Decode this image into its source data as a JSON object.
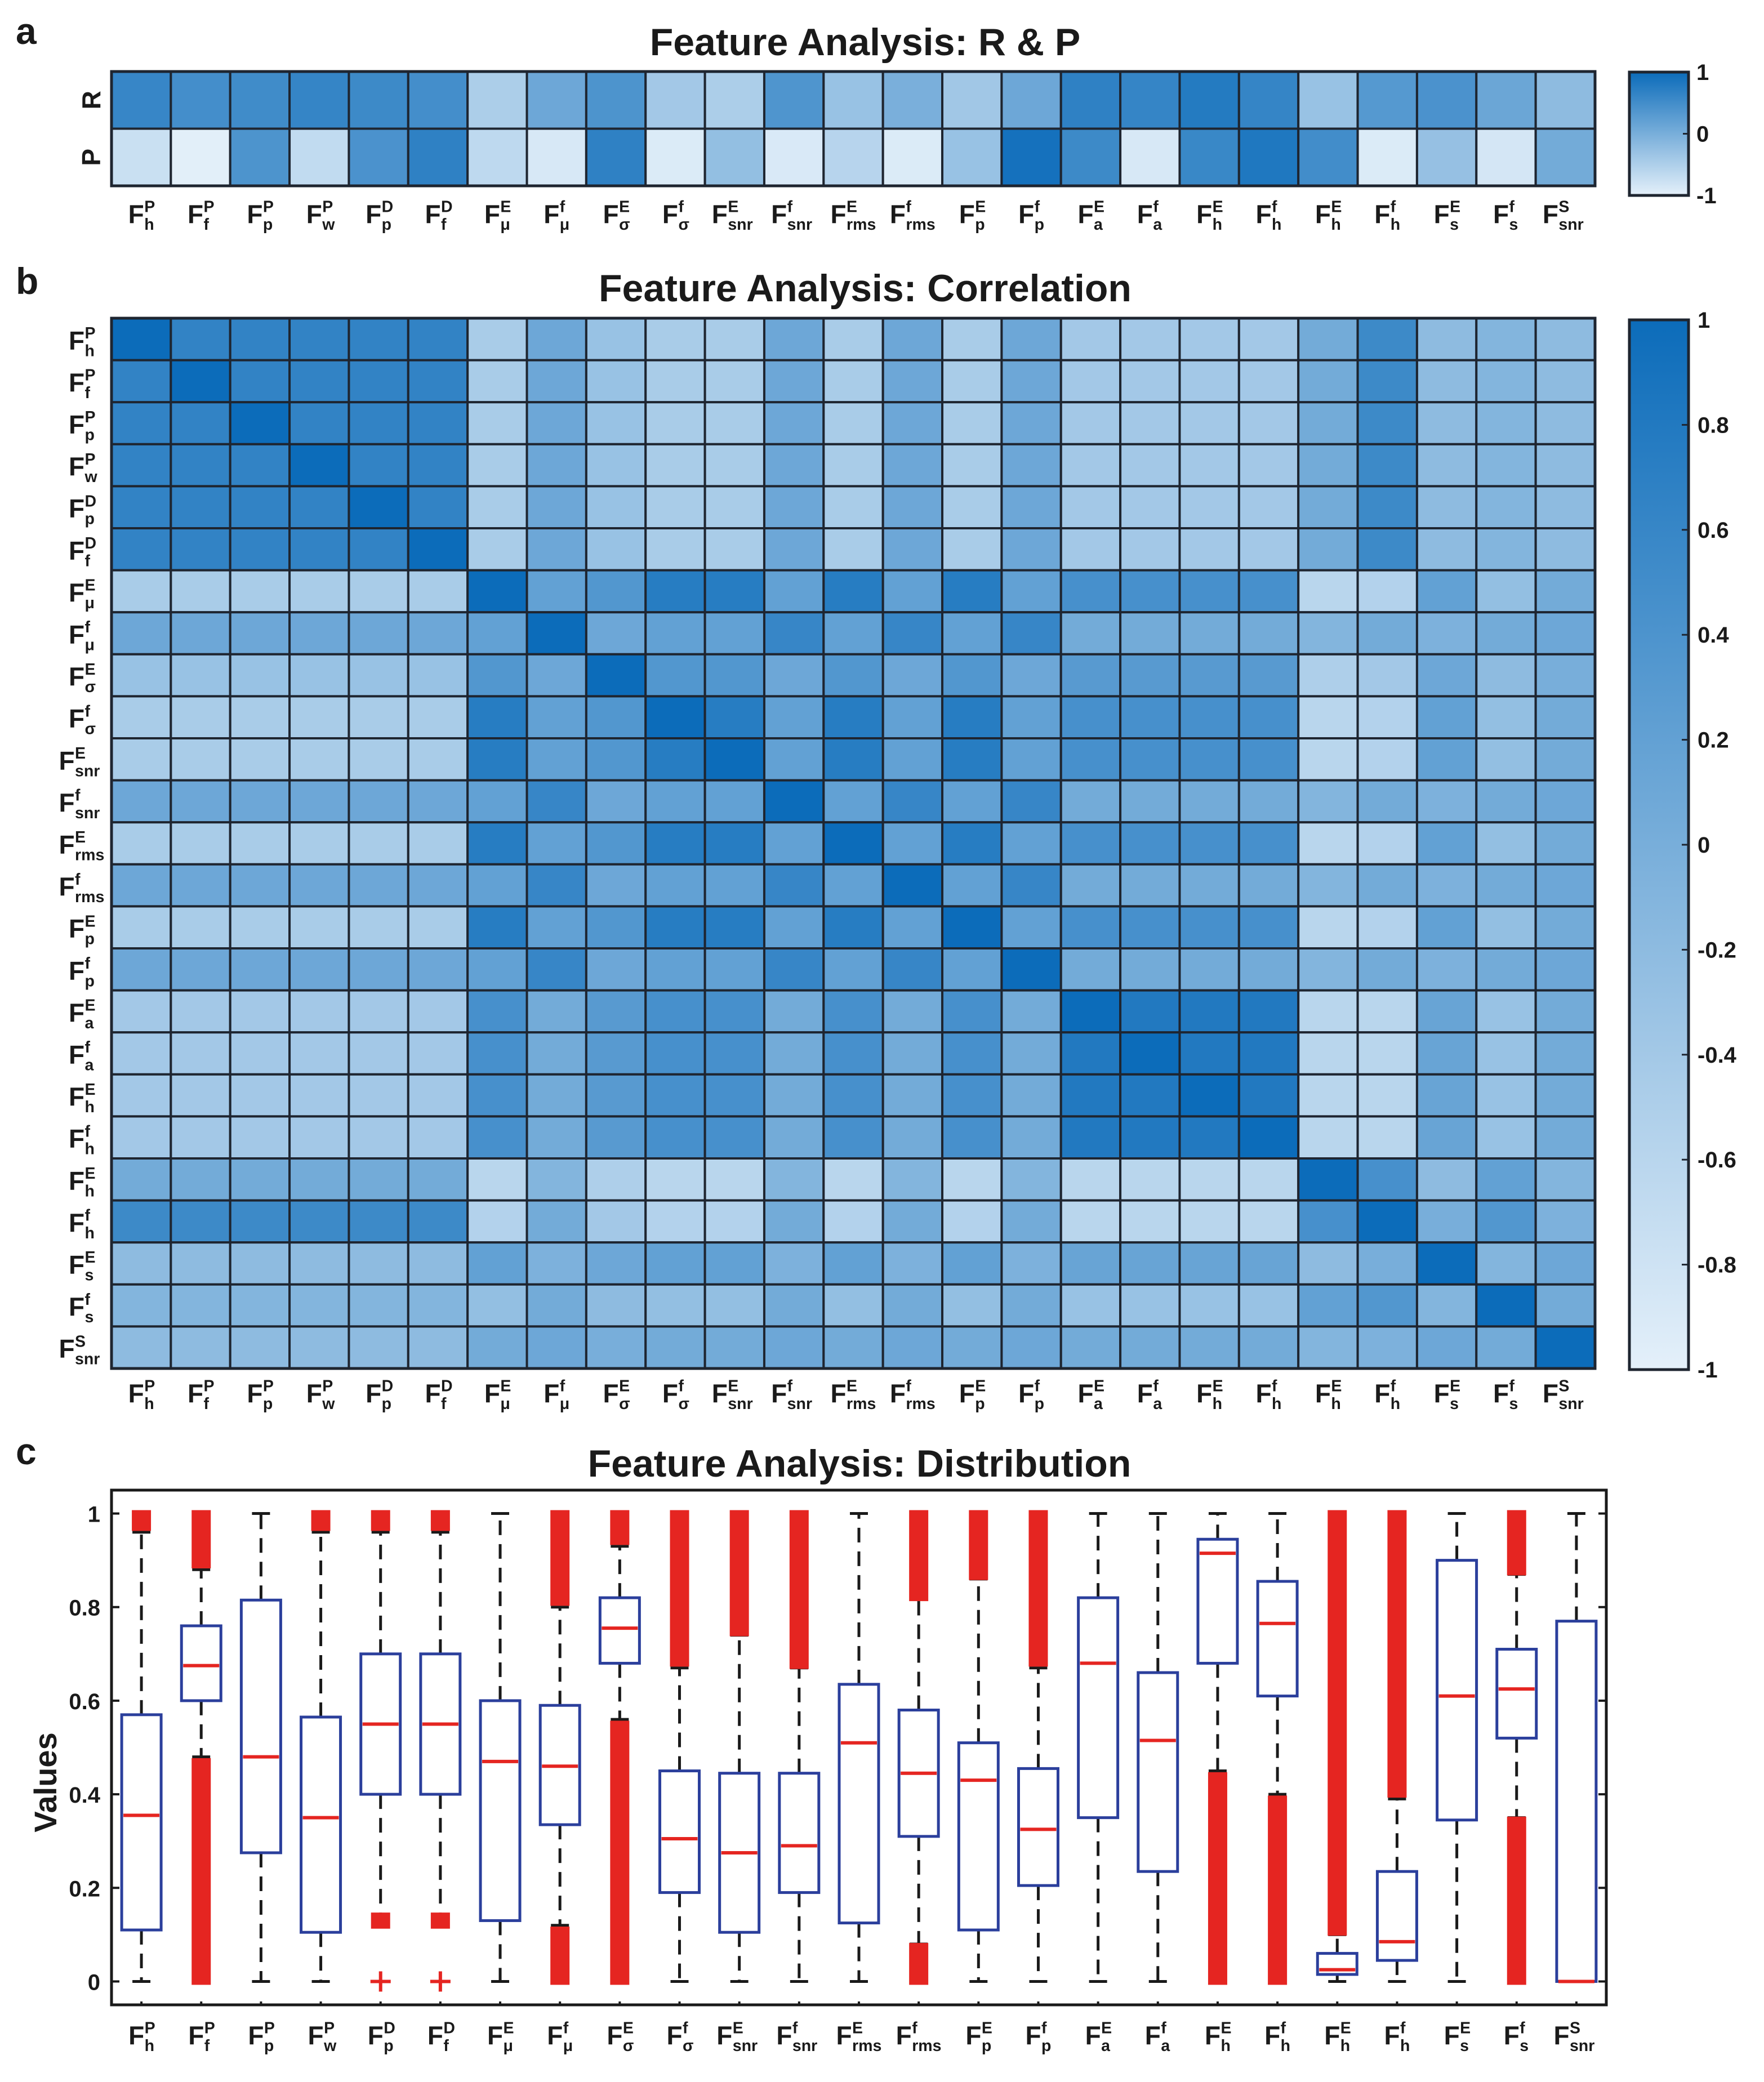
{
  "panels": {
    "a": {
      "label": "a",
      "title": "Feature Analysis: R & P"
    },
    "b": {
      "label": "b",
      "title": "Feature Analysis: Correlation"
    },
    "c": {
      "label": "c",
      "title": "Feature Analysis: Distribution"
    }
  },
  "colors": {
    "low": "#e4f0fa",
    "high": "#0c6cba",
    "median": "#e52521",
    "box": "#2b3f9c",
    "whisker": "#1a1a1a",
    "outlier": "#e52521",
    "grid": "#1e2530"
  },
  "features": [
    {
      "base": "F",
      "sup": "P",
      "sub": "h"
    },
    {
      "base": "F",
      "sup": "P",
      "sub": "f"
    },
    {
      "base": "F",
      "sup": "P",
      "sub": "p"
    },
    {
      "base": "F",
      "sup": "P",
      "sub": "w"
    },
    {
      "base": "F",
      "sup": "D",
      "sub": "p"
    },
    {
      "base": "F",
      "sup": "D",
      "sub": "f"
    },
    {
      "base": "F",
      "sup": "E",
      "sub": "μ"
    },
    {
      "base": "F",
      "sup": "f",
      "sub": "μ"
    },
    {
      "base": "F",
      "sup": "E",
      "sub": "σ"
    },
    {
      "base": "F",
      "sup": "f",
      "sub": "σ"
    },
    {
      "base": "F",
      "sup": "E",
      "sub": "snr"
    },
    {
      "base": "F",
      "sup": "f",
      "sub": "snr"
    },
    {
      "base": "F",
      "sup": "E",
      "sub": "rms"
    },
    {
      "base": "F",
      "sup": "f",
      "sub": "rms"
    },
    {
      "base": "F",
      "sup": "E",
      "sub": "p"
    },
    {
      "base": "F",
      "sup": "f",
      "sub": "p"
    },
    {
      "base": "F",
      "sup": "E",
      "sub": "a"
    },
    {
      "base": "F",
      "sup": "f",
      "sub": "a"
    },
    {
      "base": "F",
      "sup": "E",
      "sub": "h"
    },
    {
      "base": "F",
      "sup": "f",
      "sub": "h"
    },
    {
      "base": "F",
      "sup": "E",
      "sub": "h"
    },
    {
      "base": "F",
      "sup": "f",
      "sub": "h"
    },
    {
      "base": "F",
      "sup": "E",
      "sub": "s"
    },
    {
      "base": "F",
      "sup": "f",
      "sub": "s"
    },
    {
      "base": "F",
      "sup": "S",
      "sub": "snr"
    }
  ],
  "chart_data": [
    {
      "type": "heatmap",
      "title": "Feature Analysis: R & P",
      "rows": [
        "R",
        "P"
      ],
      "colorbar": {
        "min": -1,
        "max": 1,
        "ticks": [
          "1",
          "0",
          "-1"
        ]
      },
      "values": [
        [
          0.6,
          0.48,
          0.52,
          0.62,
          0.55,
          0.48,
          -0.48,
          0.1,
          0.4,
          -0.4,
          -0.48,
          0.38,
          -0.3,
          -0.02,
          -0.38,
          0.1,
          0.68,
          0.62,
          0.78,
          0.62,
          -0.3,
          0.32,
          0.42,
          0.12,
          -0.2
        ],
        [
          -0.75,
          -0.98,
          0.4,
          -0.68,
          0.42,
          0.68,
          -0.65,
          -0.88,
          0.68,
          -0.92,
          -0.25,
          -0.9,
          -0.58,
          -0.92,
          -0.3,
          0.92,
          0.55,
          -0.88,
          0.58,
          0.82,
          0.5,
          -0.92,
          -0.28,
          -0.85,
          0.05
        ]
      ]
    },
    {
      "type": "heatmap",
      "title": "Feature Analysis: Correlation",
      "colorbar": {
        "min": -1,
        "max": 1,
        "ticks": [
          "1",
          "0.8",
          "0.6",
          "0.4",
          "0.2",
          "0",
          "-0.2",
          "-0.4",
          "-0.6",
          "-0.8",
          "-1"
        ]
      },
      "blocks": {
        "rows": [
          1,
          1,
          1,
          1,
          1,
          1,
          2,
          3,
          4,
          2,
          2,
          3,
          2,
          3,
          2,
          3,
          5,
          5,
          5,
          5,
          6,
          7,
          8,
          9,
          10
        ],
        "matrix": [
          [
            0.65,
            -0.45,
            0.1,
            -0.3,
            -0.4,
            0.05,
            0.55,
            -0.2,
            -0.1,
            -0.2
          ],
          [
            -0.45,
            0.75,
            0.2,
            0.35,
            0.45,
            -0.6,
            -0.55,
            0.2,
            -0.25,
            0.05
          ],
          [
            0.1,
            0.2,
            0.6,
            0.1,
            0.05,
            -0.1,
            0.05,
            -0.05,
            0.05,
            0.1
          ],
          [
            -0.3,
            0.35,
            0.1,
            0.85,
            0.3,
            -0.5,
            -0.4,
            0.1,
            -0.2,
            0.0
          ],
          [
            -0.4,
            0.45,
            0.05,
            0.3,
            0.8,
            -0.6,
            -0.6,
            0.15,
            -0.3,
            0.05
          ],
          [
            0.05,
            -0.6,
            -0.1,
            -0.5,
            -0.6,
            0.72,
            0.45,
            -0.2,
            0.2,
            -0.1
          ],
          [
            0.55,
            -0.55,
            0.05,
            -0.4,
            -0.6,
            0.45,
            0.7,
            0.0,
            0.35,
            -0.05
          ],
          [
            -0.2,
            0.2,
            -0.05,
            0.1,
            0.15,
            -0.2,
            0.0,
            0.6,
            -0.1,
            0.1
          ],
          [
            -0.1,
            -0.25,
            0.05,
            -0.2,
            -0.3,
            0.2,
            0.35,
            -0.1,
            0.7,
            0.05
          ],
          [
            -0.2,
            0.05,
            0.1,
            0.0,
            0.05,
            -0.1,
            -0.05,
            0.1,
            0.05,
            0.6
          ]
        ]
      }
    },
    {
      "type": "box",
      "title": "Feature Analysis: Distribution",
      "ylabel": "Values",
      "ylim": [
        -0.05,
        1.05
      ],
      "yticks": [
        "0",
        "0.2",
        "0.4",
        "0.6",
        "0.8",
        "1"
      ],
      "boxes": [
        {
          "q1": 0.11,
          "med": 0.355,
          "q3": 0.57,
          "lw": 0.0,
          "uw": 0.96,
          "out": [
            [
              0.97,
              1.0
            ]
          ]
        },
        {
          "q1": 0.6,
          "med": 0.675,
          "q3": 0.76,
          "lw": 0.48,
          "uw": 0.88,
          "out": [
            [
              0.0,
              0.47
            ],
            [
              0.89,
              1.0
            ]
          ]
        },
        {
          "q1": 0.275,
          "med": 0.48,
          "q3": 0.815,
          "lw": 0.0,
          "uw": 1.0,
          "out": []
        },
        {
          "q1": 0.105,
          "med": 0.35,
          "q3": 0.565,
          "lw": 0.0,
          "uw": 0.96,
          "out": [
            [
              0.97,
              1.0
            ]
          ]
        },
        {
          "q1": 0.4,
          "med": 0.55,
          "q3": 0.7,
          "lw": 0.14,
          "uw": 0.96,
          "out": [
            [
              0.0,
              0.0
            ],
            [
              0.12,
              0.14
            ],
            [
              0.97,
              1.0
            ]
          ]
        },
        {
          "q1": 0.4,
          "med": 0.55,
          "q3": 0.7,
          "lw": 0.14,
          "uw": 0.96,
          "out": [
            [
              0.0,
              0.0
            ],
            [
              0.12,
              0.14
            ],
            [
              0.97,
              1.0
            ]
          ]
        },
        {
          "q1": 0.13,
          "med": 0.47,
          "q3": 0.6,
          "lw": 0.0,
          "uw": 1.0,
          "out": []
        },
        {
          "q1": 0.335,
          "med": 0.46,
          "q3": 0.59,
          "lw": 0.12,
          "uw": 0.8,
          "out": [
            [
              0.0,
              0.11
            ],
            [
              0.81,
              1.0
            ]
          ]
        },
        {
          "q1": 0.68,
          "med": 0.755,
          "q3": 0.82,
          "lw": 0.56,
          "uw": 0.93,
          "out": [
            [
              0.0,
              0.55
            ],
            [
              0.94,
              1.0
            ]
          ]
        },
        {
          "q1": 0.19,
          "med": 0.305,
          "q3": 0.45,
          "lw": 0.0,
          "uw": 0.67,
          "out": [
            [
              0.68,
              1.0
            ]
          ]
        },
        {
          "q1": 0.105,
          "med": 0.275,
          "q3": 0.445,
          "lw": 0.0,
          "uw": 0.74,
          "out": [
            [
              0.745,
              1.0
            ]
          ]
        },
        {
          "q1": 0.19,
          "med": 0.29,
          "q3": 0.445,
          "lw": 0.0,
          "uw": 0.67,
          "out": [
            [
              0.675,
              1.0
            ]
          ]
        },
        {
          "q1": 0.125,
          "med": 0.51,
          "q3": 0.635,
          "lw": 0.0,
          "uw": 1.0,
          "out": []
        },
        {
          "q1": 0.31,
          "med": 0.445,
          "q3": 0.58,
          "lw": 0.08,
          "uw": 0.82,
          "out": [
            [
              0.0,
              0.075
            ],
            [
              0.82,
              1.0
            ]
          ]
        },
        {
          "q1": 0.11,
          "med": 0.43,
          "q3": 0.51,
          "lw": 0.0,
          "uw": 0.86,
          "out": [
            [
              0.865,
              1.0
            ]
          ]
        },
        {
          "q1": 0.205,
          "med": 0.325,
          "q3": 0.455,
          "lw": 0.0,
          "uw": 0.67,
          "out": [
            [
              0.68,
              1.0
            ]
          ]
        },
        {
          "q1": 0.35,
          "med": 0.68,
          "q3": 0.82,
          "lw": 0.0,
          "uw": 1.0,
          "out": []
        },
        {
          "q1": 0.235,
          "med": 0.515,
          "q3": 0.66,
          "lw": 0.0,
          "uw": 1.0,
          "out": []
        },
        {
          "q1": 0.68,
          "med": 0.915,
          "q3": 0.945,
          "lw": 0.45,
          "uw": 1.0,
          "out": [
            [
              0.0,
              0.44
            ]
          ]
        },
        {
          "q1": 0.61,
          "med": 0.765,
          "q3": 0.855,
          "lw": 0.4,
          "uw": 1.0,
          "out": [
            [
              0.0,
              0.39
            ]
          ]
        },
        {
          "q1": 0.015,
          "med": 0.025,
          "q3": 0.06,
          "lw": 0.0,
          "uw": 0.1,
          "out": [
            [
              0.105,
              1.0
            ]
          ]
        },
        {
          "q1": 0.045,
          "med": 0.085,
          "q3": 0.235,
          "lw": 0.0,
          "uw": 0.39,
          "out": [
            [
              0.4,
              1.0
            ]
          ]
        },
        {
          "q1": 0.345,
          "med": 0.61,
          "q3": 0.9,
          "lw": 0.0,
          "uw": 1.0,
          "out": []
        },
        {
          "q1": 0.52,
          "med": 0.625,
          "q3": 0.71,
          "lw": 0.35,
          "uw": 0.87,
          "out": [
            [
              0.0,
              0.345
            ],
            [
              0.875,
              1.0
            ]
          ]
        },
        {
          "q1": 0.0,
          "med": 0.0,
          "q3": 0.77,
          "lw": 0.0,
          "uw": 1.0,
          "out": []
        }
      ]
    }
  ]
}
